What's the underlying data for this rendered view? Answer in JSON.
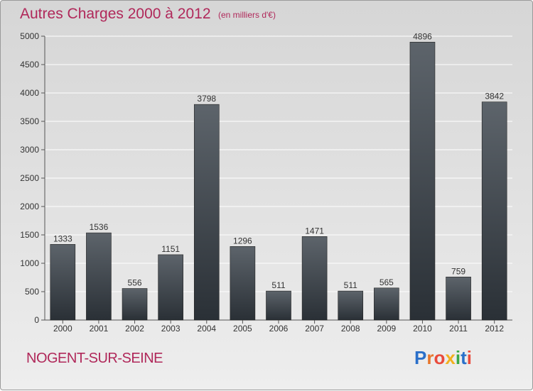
{
  "header": {
    "title": "Autres Charges 2000 à 2012",
    "subtitle": "(en milliers d'€)"
  },
  "commune": "NOGENT-SUR-SEINE",
  "logo": {
    "text": "Proxiti",
    "colors": [
      "#2a6fc9",
      "#e8762b",
      "#e94b3c",
      "#f2b01e",
      "#3aa845",
      "#2a6fc9",
      "#e94b3c"
    ]
  },
  "chart_data": {
    "type": "bar",
    "title": "Autres Charges 2000 à 2012",
    "subtitle": "(en milliers d'€)",
    "categories": [
      "2000",
      "2001",
      "2002",
      "2003",
      "2004",
      "2005",
      "2006",
      "2007",
      "2008",
      "2009",
      "2010",
      "2011",
      "2012"
    ],
    "values": [
      1333,
      1536,
      556,
      1151,
      3798,
      1296,
      511,
      1471,
      511,
      565,
      4896,
      759,
      3842
    ],
    "ylim": [
      0,
      5000
    ],
    "yticks": [
      0,
      500,
      1000,
      1500,
      2000,
      2500,
      3000,
      3500,
      4000,
      4500,
      5000
    ],
    "grid": true,
    "bar_color_top": "#5d646b",
    "bar_color_bottom": "#2a3036"
  }
}
